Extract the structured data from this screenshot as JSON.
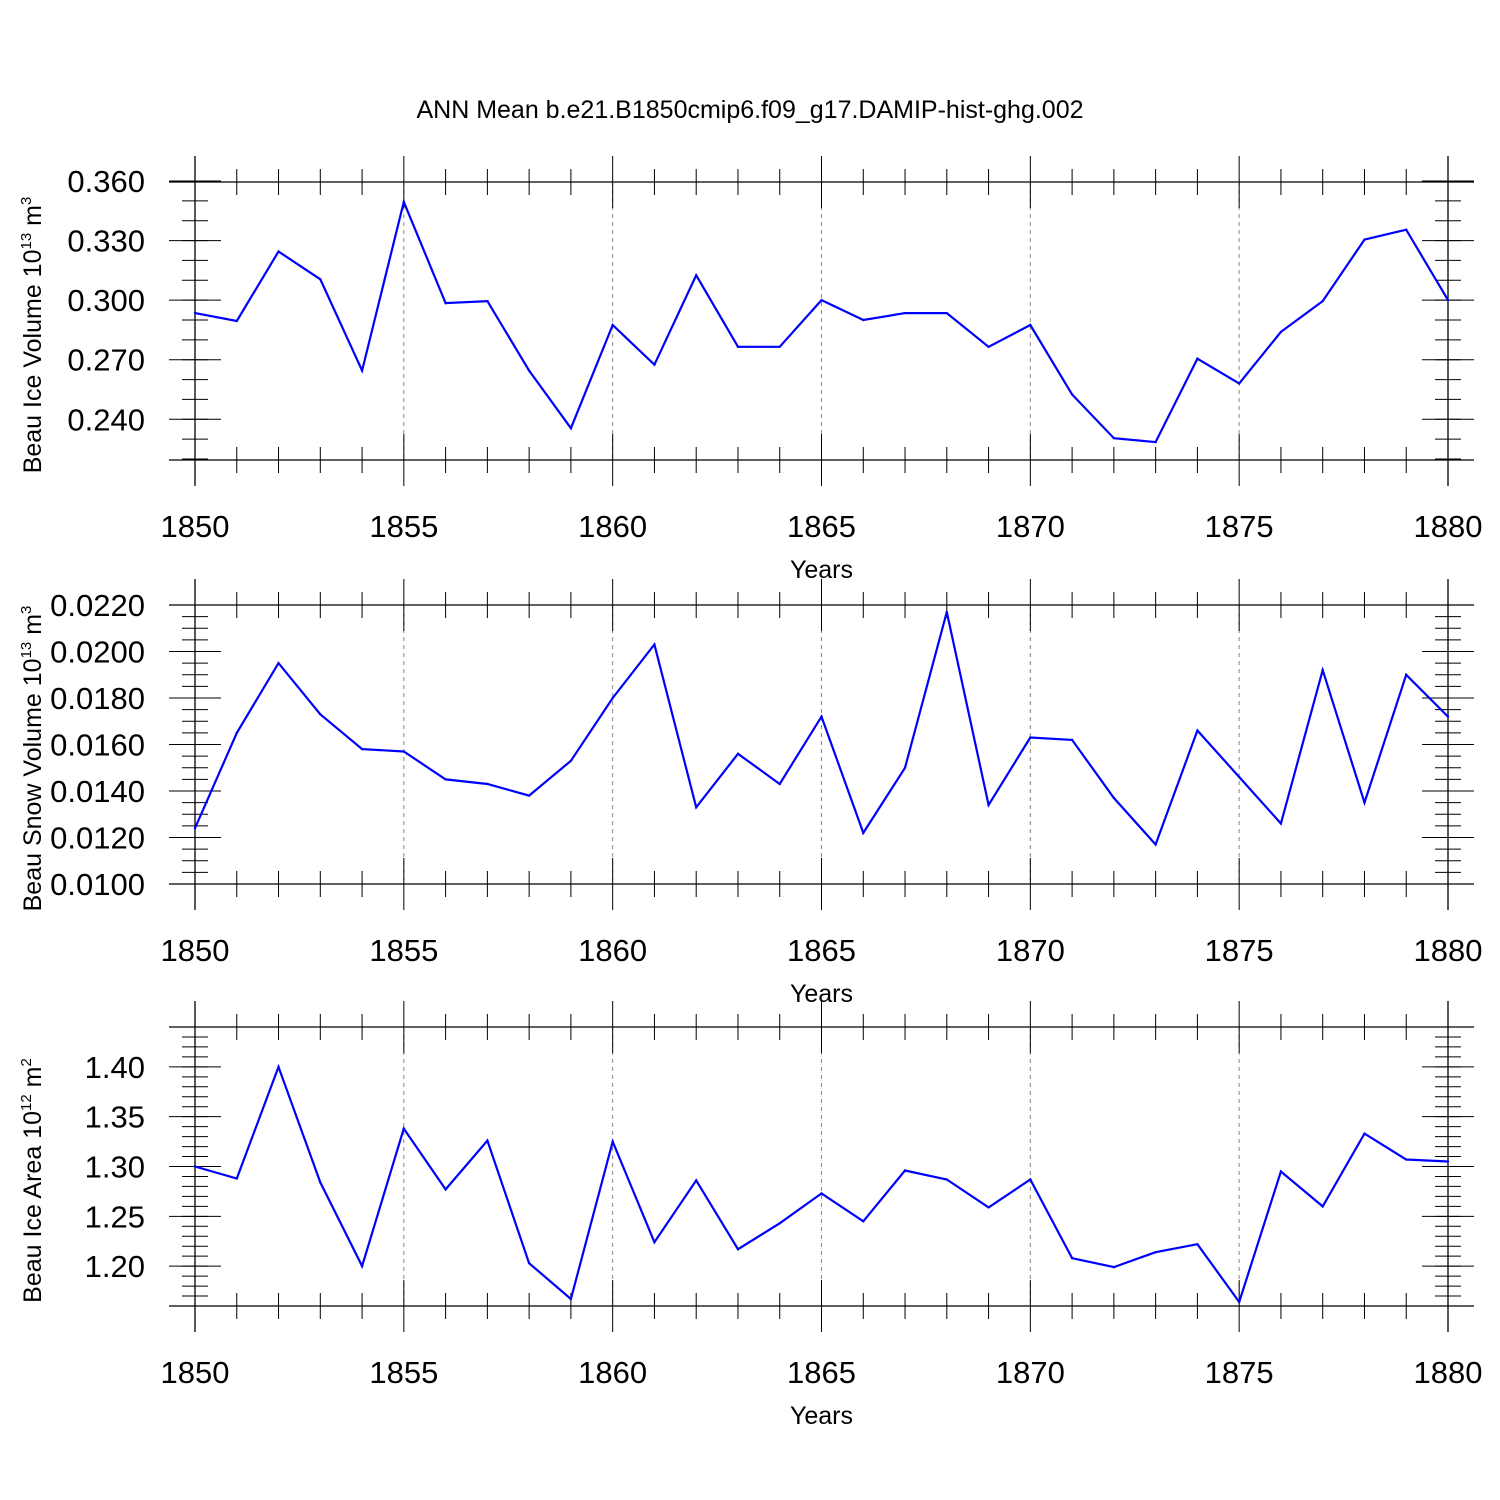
{
  "title": "ANN Mean b.e21.B1850cmip6.f09_g17.DAMIP-hist-ghg.002",
  "colors": {
    "line": "#0000ff",
    "grid": "#8a8a8a",
    "axis": "#000000"
  },
  "chart_data": [
    {
      "type": "line",
      "panel": "top",
      "ylabel": {
        "prefix": "Beau Ice Volume 10",
        "exp": "13",
        "unit": " m",
        "unit_exp": "3"
      },
      "xlabel": "Years",
      "xlim": [
        1850,
        1880
      ],
      "ylim": [
        0.2195,
        0.3595
      ],
      "yticks": [
        0.24,
        0.27,
        0.3,
        0.33,
        0.36
      ],
      "ytick_labels": [
        "0.240",
        "0.270",
        "0.300",
        "0.330",
        "0.360"
      ],
      "ytick_minor": 0.01,
      "xticks": [
        1850,
        1855,
        1860,
        1865,
        1870,
        1875,
        1880
      ],
      "xtick_labels": [
        "1850",
        "1855",
        "1860",
        "1865",
        "1870",
        "1875",
        "1880"
      ],
      "series": [
        {
          "name": "Beau Ice Volume",
          "x": [
            1850,
            1851,
            1852,
            1853,
            1854,
            1855,
            1856,
            1857,
            1858,
            1859,
            1860,
            1861,
            1862,
            1863,
            1864,
            1865,
            1866,
            1867,
            1868,
            1869,
            1870,
            1871,
            1872,
            1873,
            1874,
            1875,
            1876,
            1877,
            1878,
            1879,
            1880
          ],
          "values": [
            0.2935,
            0.2895,
            0.3245,
            0.3105,
            0.2645,
            0.3495,
            0.2985,
            0.2995,
            0.2645,
            0.2355,
            0.2875,
            0.2675,
            0.3125,
            0.2765,
            0.2765,
            0.3,
            0.29,
            0.2935,
            0.2935,
            0.2765,
            0.2875,
            0.2525,
            0.2305,
            0.2285,
            0.2705,
            0.258,
            0.284,
            0.2995,
            0.3305,
            0.3355,
            0.3
          ]
        }
      ]
    },
    {
      "type": "line",
      "panel": "middle",
      "ylabel": {
        "prefix": "Beau Snow Volume 10",
        "exp": "13",
        "unit": " m",
        "unit_exp": "3"
      },
      "xlabel": "Years",
      "xlim": [
        1850,
        1880
      ],
      "ylim": [
        0.01,
        0.022
      ],
      "yticks": [
        0.01,
        0.012,
        0.014,
        0.016,
        0.018,
        0.02,
        0.022
      ],
      "ytick_labels": [
        "0.0100",
        "0.0120",
        "0.0140",
        "0.0160",
        "0.0180",
        "0.0200",
        "0.0220"
      ],
      "ytick_minor": 0.0005,
      "xticks": [
        1850,
        1855,
        1860,
        1865,
        1870,
        1875,
        1880
      ],
      "xtick_labels": [
        "1850",
        "1855",
        "1860",
        "1865",
        "1870",
        "1875",
        "1880"
      ],
      "series": [
        {
          "name": "Beau Snow Volume",
          "x": [
            1850,
            1851,
            1852,
            1853,
            1854,
            1855,
            1856,
            1857,
            1858,
            1859,
            1860,
            1861,
            1862,
            1863,
            1864,
            1865,
            1866,
            1867,
            1868,
            1869,
            1870,
            1871,
            1872,
            1873,
            1874,
            1875,
            1876,
            1877,
            1878,
            1879,
            1880
          ],
          "values": [
            0.0124,
            0.0165,
            0.0195,
            0.0173,
            0.0158,
            0.0157,
            0.0145,
            0.0143,
            0.0138,
            0.0153,
            0.018,
            0.0203,
            0.0133,
            0.0156,
            0.0143,
            0.0172,
            0.0122,
            0.015,
            0.0217,
            0.0134,
            0.0163,
            0.0162,
            0.0137,
            0.0117,
            0.0166,
            0.0146,
            0.0126,
            0.0192,
            0.0135,
            0.019,
            0.0172
          ]
        }
      ]
    },
    {
      "type": "line",
      "panel": "bottom",
      "ylabel": {
        "prefix": "Beau Ice Area 10",
        "exp": "12",
        "unit": " m",
        "unit_exp": "2"
      },
      "xlabel": "Years",
      "xlim": [
        1850,
        1880
      ],
      "ylim": [
        1.16,
        1.44
      ],
      "yticks": [
        1.2,
        1.25,
        1.3,
        1.35,
        1.4
      ],
      "ytick_labels": [
        "1.20",
        "1.25",
        "1.30",
        "1.35",
        "1.40"
      ],
      "ytick_minor": 0.01,
      "xticks": [
        1850,
        1855,
        1860,
        1865,
        1870,
        1875,
        1880
      ],
      "xtick_labels": [
        "1850",
        "1855",
        "1860",
        "1865",
        "1870",
        "1875",
        "1880"
      ],
      "series": [
        {
          "name": "Beau Ice Area",
          "x": [
            1850,
            1851,
            1852,
            1853,
            1854,
            1855,
            1856,
            1857,
            1858,
            1859,
            1860,
            1861,
            1862,
            1863,
            1864,
            1865,
            1866,
            1867,
            1868,
            1869,
            1870,
            1871,
            1872,
            1873,
            1874,
            1875,
            1876,
            1877,
            1878,
            1879,
            1880
          ],
          "values": [
            1.3,
            1.288,
            1.4,
            1.284,
            1.2,
            1.338,
            1.277,
            1.326,
            1.203,
            1.167,
            1.325,
            1.224,
            1.286,
            1.217,
            1.243,
            1.273,
            1.245,
            1.296,
            1.287,
            1.259,
            1.287,
            1.208,
            1.199,
            1.214,
            1.222,
            1.164,
            1.295,
            1.26,
            1.333,
            1.307,
            1.305
          ]
        }
      ]
    }
  ]
}
